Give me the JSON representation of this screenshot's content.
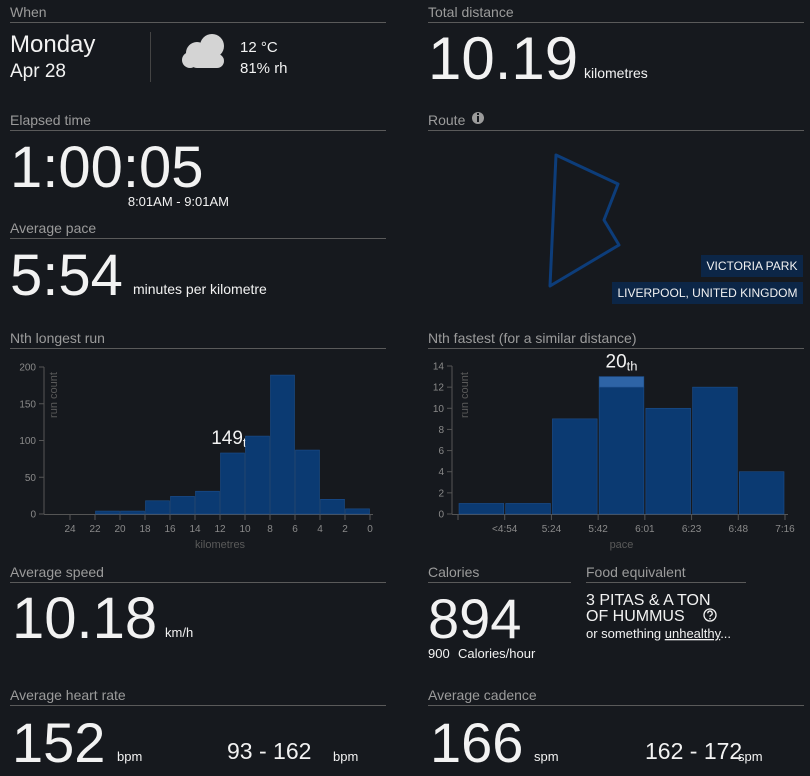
{
  "when": {
    "label": "When",
    "day": "Monday",
    "date": "Apr 28",
    "temperature": "12 °C",
    "humidity": "81% rh"
  },
  "total_distance": {
    "label": "Total distance",
    "value": "10.19",
    "unit": "kilometres"
  },
  "elapsed_time": {
    "label": "Elapsed time",
    "value": "1:00:05",
    "range": "8:01AM - 9:01AM"
  },
  "average_pace": {
    "label": "Average pace",
    "value": "5:54",
    "unit": "minutes per kilometre"
  },
  "route": {
    "label": "Route",
    "place": "VICTORIA PARK",
    "location": "LIVERPOOL, UNITED KINGDOM"
  },
  "chart_data": [
    {
      "type": "histogram",
      "title": "Nth longest run",
      "xlabel": "kilometres",
      "ylabel": "run count",
      "bins": [
        22,
        20,
        18,
        16,
        14,
        12,
        10,
        8,
        6,
        4,
        2,
        0
      ],
      "values": [
        4,
        4,
        18,
        24,
        31,
        83,
        106,
        189,
        87,
        20,
        7
      ],
      "color": "#0b3a72",
      "xlim": [
        24,
        0
      ],
      "xticks": [
        24,
        22,
        20,
        18,
        16,
        14,
        12,
        10,
        8,
        6,
        4,
        2,
        0
      ],
      "ylim": [
        0,
        200
      ],
      "yticks": [
        0,
        50,
        100,
        150,
        200
      ],
      "annotation": {
        "text": "149",
        "suffix": "th"
      }
    },
    {
      "type": "histogram",
      "title": "Nth fastest (for a similar distance)",
      "xlabel": "pace",
      "ylabel": "run count",
      "bin_edges": [
        null,
        "<4:54",
        "5:24",
        "5:42",
        "6:01",
        "6:23",
        "6:48",
        "7:16"
      ],
      "series": [
        {
          "color": "#0b3a72",
          "values": [
            1,
            1,
            9,
            12,
            10,
            12,
            4
          ]
        },
        {
          "color": "#2e64a6",
          "values": [
            0,
            0,
            0,
            1,
            0,
            0,
            0
          ]
        }
      ],
      "ylim": [
        0,
        14
      ],
      "yticks": [
        0,
        2,
        4,
        6,
        8,
        10,
        12,
        14
      ],
      "annotation": {
        "text": "20",
        "suffix": "th"
      }
    }
  ],
  "average_speed": {
    "label": "Average speed",
    "value": "10.18",
    "unit": "km/h"
  },
  "calories": {
    "label": "Calories",
    "value": "894",
    "rate": "900",
    "rate_unit": "Calories/hour"
  },
  "food_equivalent": {
    "label": "Food equivalent",
    "line1": "3 PITAS & A TON",
    "line2": "OF HUMMUS",
    "note_prefix": "or something ",
    "note_link": "unhealthy",
    "note_suffix": "..."
  },
  "heart_rate": {
    "label": "Average heart rate",
    "value": "152",
    "unit": "bpm",
    "range": "93 - 162",
    "range_unit": "bpm"
  },
  "cadence": {
    "label": "Average cadence",
    "value": "166",
    "unit": "spm",
    "range": "162 - 172",
    "range_unit": "spm"
  }
}
